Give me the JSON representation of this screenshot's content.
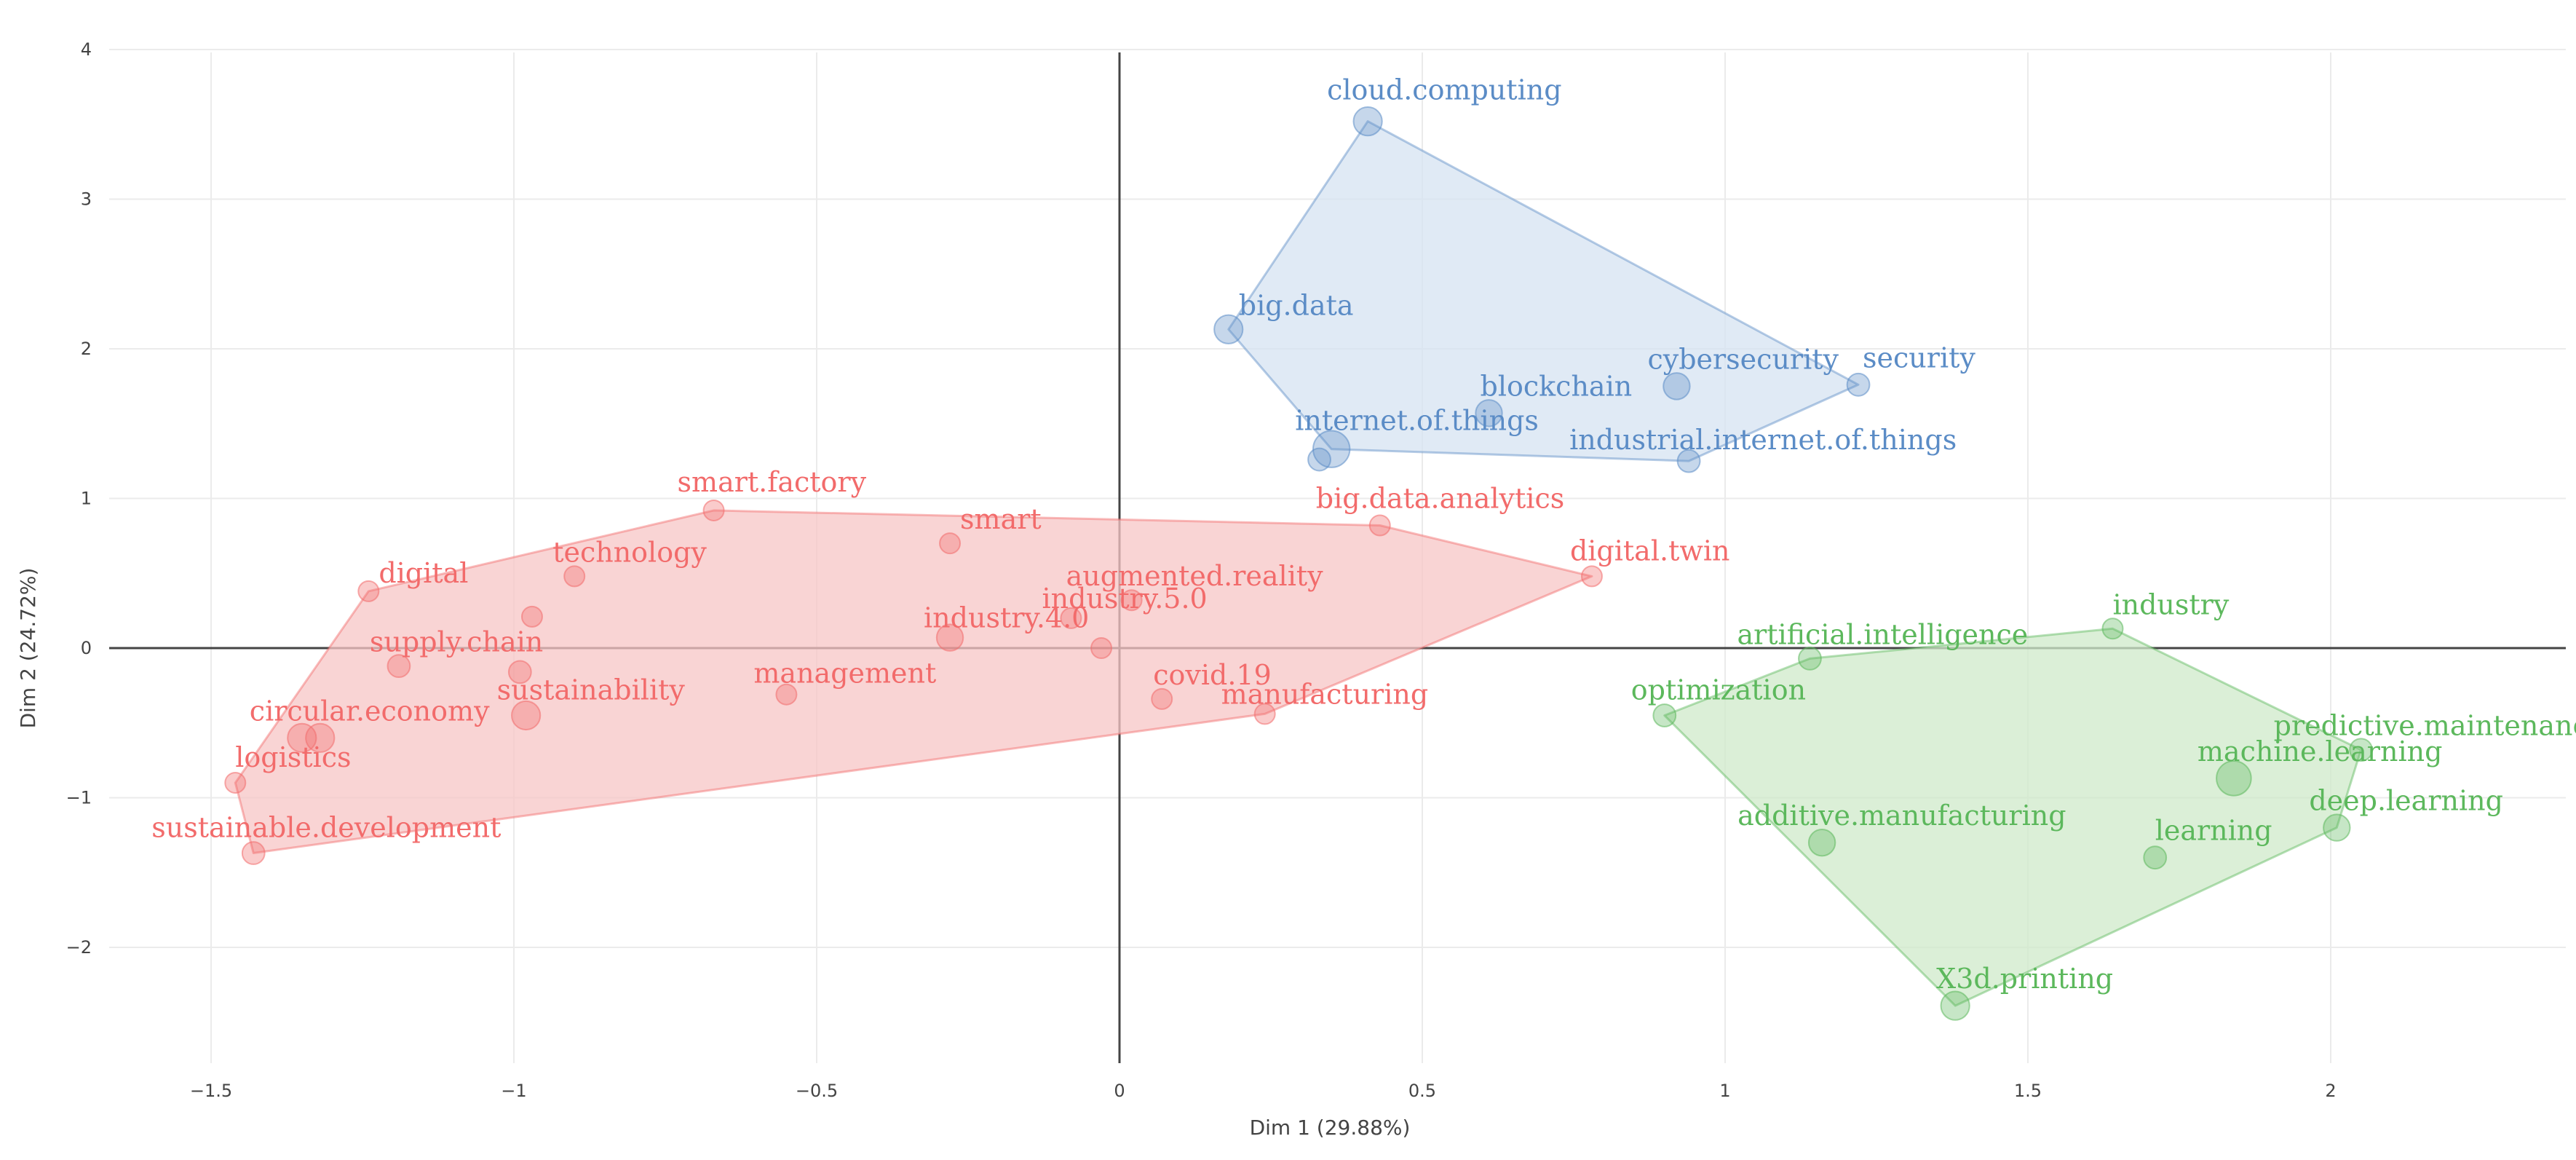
{
  "chart_data": {
    "type": "scatter",
    "title": "",
    "xlabel": "Dim 1 (29.88%)",
    "ylabel": "Dim 2 (24.72%)",
    "xlim": [
      -1.5,
      2.0
    ],
    "ylim": [
      -2.0,
      4.0
    ],
    "x_ticks": [
      -1.5,
      -1,
      -0.5,
      0,
      0.5,
      1,
      1.5,
      2
    ],
    "x_tick_labels": [
      "−1.5",
      "−1",
      "−0.5",
      "0",
      "0.5",
      "1",
      "1.5",
      "2"
    ],
    "y_ticks": [
      -2,
      -1,
      0,
      1,
      2,
      3,
      4
    ],
    "y_tick_labels": [
      "−2",
      "−1",
      "0",
      "1",
      "2",
      "3",
      "4"
    ],
    "grid": true,
    "legend": "none",
    "clusters": [
      {
        "name": "cluster-red",
        "color": "#f26b6b",
        "fill": "#f7c6c6",
        "hull": [
          "sustainable.development",
          "logistics",
          "digital",
          "smart.factory",
          "big.data.analytics",
          "digital.twin",
          "manufacturing"
        ],
        "points": [
          {
            "label": "smart.factory",
            "x": -0.67,
            "y": 0.92,
            "size": 1
          },
          {
            "label": "smart",
            "x": -0.28,
            "y": 0.7,
            "size": 1
          },
          {
            "label": "digital",
            "x": -1.24,
            "y": 0.38,
            "size": 1
          },
          {
            "label": "technology",
            "x": -0.9,
            "y": 0.48,
            "size": 1
          },
          {
            "label": "augmented.reality",
            "x": 0.02,
            "y": 0.32,
            "size": 1
          },
          {
            "label": "industry.5.0",
            "x": -0.08,
            "y": 0.2,
            "size": 1
          },
          {
            "label": "industry.4.0",
            "x": -0.28,
            "y": 0.07,
            "size": 1.3
          },
          {
            "label": "",
            "x": -0.97,
            "y": 0.21,
            "size": 1
          },
          {
            "label": "",
            "x": -0.03,
            "y": 0.0,
            "size": 1
          },
          {
            "label": "supply.chain",
            "x": -1.19,
            "y": -0.12,
            "size": 1.1
          },
          {
            "label": "",
            "x": -0.99,
            "y": -0.16,
            "size": 1.1
          },
          {
            "label": "sustainability",
            "x": -0.98,
            "y": -0.45,
            "size": 1.4
          },
          {
            "label": "management",
            "x": -0.55,
            "y": -0.31,
            "size": 1
          },
          {
            "label": "covid.19",
            "x": 0.07,
            "y": -0.34,
            "size": 1
          },
          {
            "label": "manufacturing",
            "x": 0.24,
            "y": -0.44,
            "size": 1
          },
          {
            "label": "circular.economy",
            "x": -1.35,
            "y": -0.6,
            "size": 1.4
          },
          {
            "label": "",
            "x": -1.32,
            "y": -0.6,
            "size": 1.4
          },
          {
            "label": "logistics",
            "x": -1.46,
            "y": -0.9,
            "size": 1
          },
          {
            "label": "sustainable.development",
            "x": -1.43,
            "y": -1.37,
            "size": 1.1
          },
          {
            "label": "big.data.analytics",
            "x": 0.43,
            "y": 0.82,
            "size": 1
          },
          {
            "label": "digital.twin",
            "x": 0.78,
            "y": 0.48,
            "size": 1
          }
        ]
      },
      {
        "name": "cluster-blue",
        "color": "#5b8cc6",
        "fill": "#d6e3f1",
        "hull": [
          "cloud.computing",
          "security",
          "industrial.internet.of.things",
          "internet.of.things",
          "big.data"
        ],
        "points": [
          {
            "label": "cloud.computing",
            "x": 0.41,
            "y": 3.52,
            "size": 1.4
          },
          {
            "label": "big.data",
            "x": 0.18,
            "y": 2.13,
            "size": 1.4
          },
          {
            "label": "blockchain",
            "x": 0.61,
            "y": 1.57,
            "size": 1.3
          },
          {
            "label": "cybersecurity",
            "x": 0.92,
            "y": 1.75,
            "size": 1.3
          },
          {
            "label": "security",
            "x": 1.22,
            "y": 1.76,
            "size": 1.1
          },
          {
            "label": "internet.of.things",
            "x": 0.35,
            "y": 1.33,
            "size": 1.8
          },
          {
            "label": "",
            "x": 0.33,
            "y": 1.26,
            "size": 1.1
          },
          {
            "label": "industrial.internet.of.things",
            "x": 0.94,
            "y": 1.25,
            "size": 1.1
          }
        ]
      },
      {
        "name": "cluster-green",
        "color": "#5cb85c",
        "fill": "#cfe9c9",
        "hull": [
          "optimization",
          "artificial.intelligence",
          "industry",
          "predictive.maintenance",
          "deep.learning",
          "X3d.printing"
        ],
        "points": [
          {
            "label": "industry",
            "x": 1.64,
            "y": 0.13,
            "size": 1
          },
          {
            "label": "artificial.intelligence",
            "x": 1.14,
            "y": -0.07,
            "size": 1.1
          },
          {
            "label": "optimization",
            "x": 0.9,
            "y": -0.45,
            "size": 1.1
          },
          {
            "label": "predictive.maintenance",
            "x": 2.05,
            "y": -0.68,
            "size": 1.1
          },
          {
            "label": "machine.learning",
            "x": 1.84,
            "y": -0.87,
            "size": 1.7
          },
          {
            "label": "deep.learning",
            "x": 2.01,
            "y": -1.2,
            "size": 1.3
          },
          {
            "label": "learning",
            "x": 1.71,
            "y": -1.4,
            "size": 1.1
          },
          {
            "label": "additive.manufacturing",
            "x": 1.16,
            "y": -1.3,
            "size": 1.3
          },
          {
            "label": "X3d.printing",
            "x": 1.38,
            "y": -2.39,
            "size": 1.4
          }
        ]
      }
    ]
  }
}
